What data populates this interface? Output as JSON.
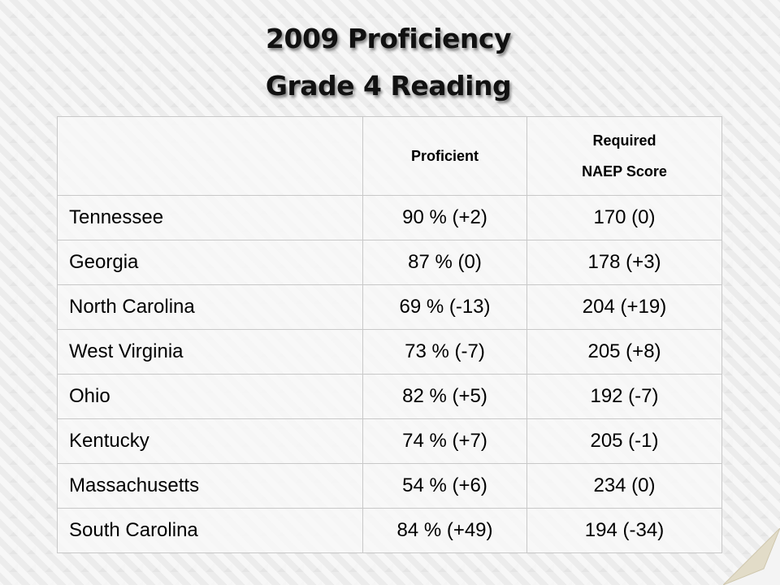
{
  "header": {
    "title_lines": [
      "2009 Proficiency",
      "Grade 4 Reading"
    ]
  },
  "table": {
    "header": {
      "proficient": "Proficient",
      "required": [
        "Required",
        "NAEP Score"
      ]
    },
    "rows": [
      [
        "Tennessee",
        "90 % (+2)",
        "170 (0)"
      ],
      [
        "Georgia",
        "87 % (0)",
        "178 (+3)"
      ],
      [
        "North Carolina",
        "69 % (-13)",
        "204 (+19)"
      ],
      [
        "West Virginia",
        "73 % (-7)",
        "205 (+8)"
      ],
      [
        "Ohio",
        "82 % (+5)",
        "192 (-7)"
      ],
      [
        "Kentucky",
        "74 % (+7)",
        "205 (-1)"
      ],
      [
        "Massachusetts",
        "54 % (+6)",
        "234 (0)"
      ],
      [
        "South Carolina",
        "84 % (+49)",
        "194 (-34)"
      ]
    ]
  }
}
